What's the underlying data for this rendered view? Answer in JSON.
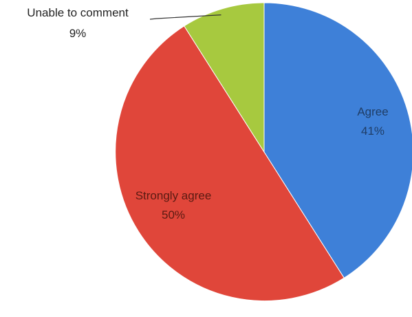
{
  "chart_data": {
    "type": "pie",
    "title": "",
    "slices": [
      {
        "label": "Agree",
        "value": 41,
        "value_label": "41%",
        "color": "#3e80d8",
        "label_color": "#1f3d66"
      },
      {
        "label": "Strongly agree",
        "value": 50,
        "value_label": "50%",
        "color": "#e0463a",
        "label_color": "#5a1a12"
      },
      {
        "label": "Unable to comment",
        "value": 9,
        "value_label": "9%",
        "color": "#a7c93f",
        "label_color": "#222222"
      }
    ],
    "start_angle": "12 o'clock",
    "direction": "clockwise",
    "legend": "none",
    "data_labels": "inside (Agree, Strongly agree); outside with leader line (Unable to comment)"
  }
}
